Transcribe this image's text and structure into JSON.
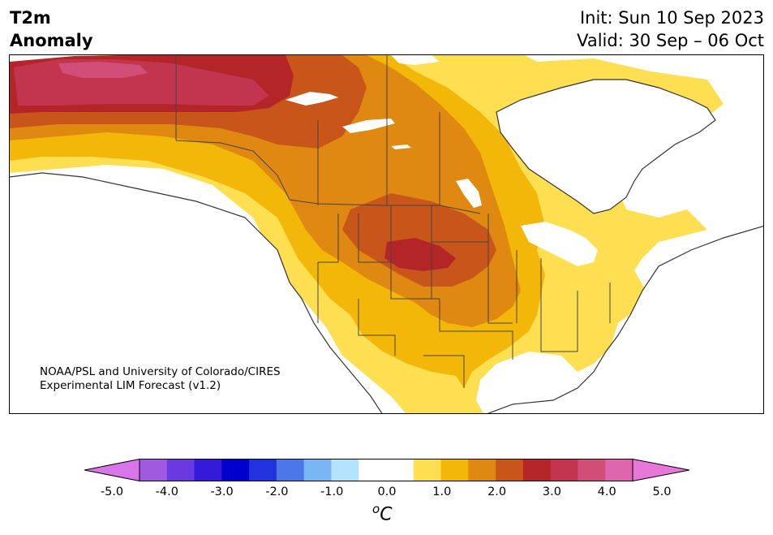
{
  "header": {
    "variable_line1": "T2m",
    "variable_line2": "Anomaly",
    "init": "Init: Sun 10 Sep 2023",
    "valid": "Valid: 30 Sep – 06 Oct"
  },
  "credit": {
    "line1": "NOAA/PSL and University of Colorado/CIRES",
    "line2": "Experimental LIM Forecast (v1.2)"
  },
  "colorbar": {
    "unit_base": "C",
    "unit_super": "o",
    "ticks": [
      "-5.0",
      "-4.0",
      "-3.0",
      "-2.0",
      "-1.0",
      "0.0",
      "1.0",
      "2.0",
      "3.0",
      "4.0",
      "5.0"
    ],
    "colors": [
      "#d875e8",
      "#a05ae0",
      "#6a3ae0",
      "#3419d8",
      "#0000cc",
      "#2233dd",
      "#4c77e8",
      "#78b5f2",
      "#b2e2fc",
      "#ffffff",
      "#ffffff",
      "#fedf52",
      "#f2b708",
      "#df8912",
      "#c8561a",
      "#b42528",
      "#c3344e",
      "#d04e78",
      "#dd66ac",
      "#e878d8"
    ]
  },
  "map": {
    "region": "North America",
    "anomaly_colors": {
      "plus_0_5": "#fedf52",
      "plus_1_0": "#f2b708",
      "plus_1_5": "#df8912",
      "plus_2_0": "#c8561a",
      "plus_2_5": "#b42528",
      "plus_3_0": "#c3344e",
      "plus_3_5": "#d04e78"
    }
  }
}
